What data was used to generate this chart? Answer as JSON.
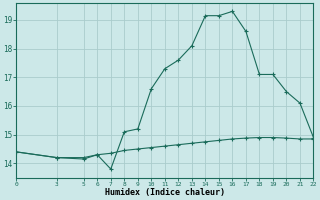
{
  "xlabel": "Humidex (Indice chaleur)",
  "background_color": "#cce8e8",
  "line_color": "#1a6b5a",
  "grid_color": "#aacccc",
  "xlim": [
    0,
    22
  ],
  "ylim": [
    13.5,
    19.6
  ],
  "xticks": [
    0,
    3,
    5,
    6,
    7,
    8,
    9,
    10,
    11,
    12,
    13,
    14,
    15,
    16,
    17,
    18,
    19,
    20,
    21,
    22
  ],
  "yticks": [
    14,
    15,
    16,
    17,
    18,
    19
  ],
  "series1_x": [
    0,
    3,
    5,
    6,
    7,
    8,
    9,
    10,
    11,
    12,
    13,
    14,
    15,
    16,
    17,
    18,
    19,
    20,
    21,
    22
  ],
  "series1_y": [
    14.4,
    14.2,
    14.2,
    14.3,
    13.8,
    15.1,
    15.2,
    16.6,
    17.3,
    17.6,
    18.1,
    19.15,
    19.15,
    19.3,
    18.6,
    17.1,
    17.1,
    16.5,
    16.1,
    14.9
  ],
  "series2_x": [
    0,
    3,
    5,
    6,
    7,
    8,
    9,
    10,
    11,
    12,
    13,
    14,
    15,
    16,
    17,
    18,
    19,
    20,
    21,
    22
  ],
  "series2_y": [
    14.4,
    14.2,
    14.15,
    14.3,
    14.35,
    14.45,
    14.5,
    14.55,
    14.6,
    14.65,
    14.7,
    14.75,
    14.8,
    14.85,
    14.88,
    14.9,
    14.9,
    14.88,
    14.85,
    14.85
  ]
}
